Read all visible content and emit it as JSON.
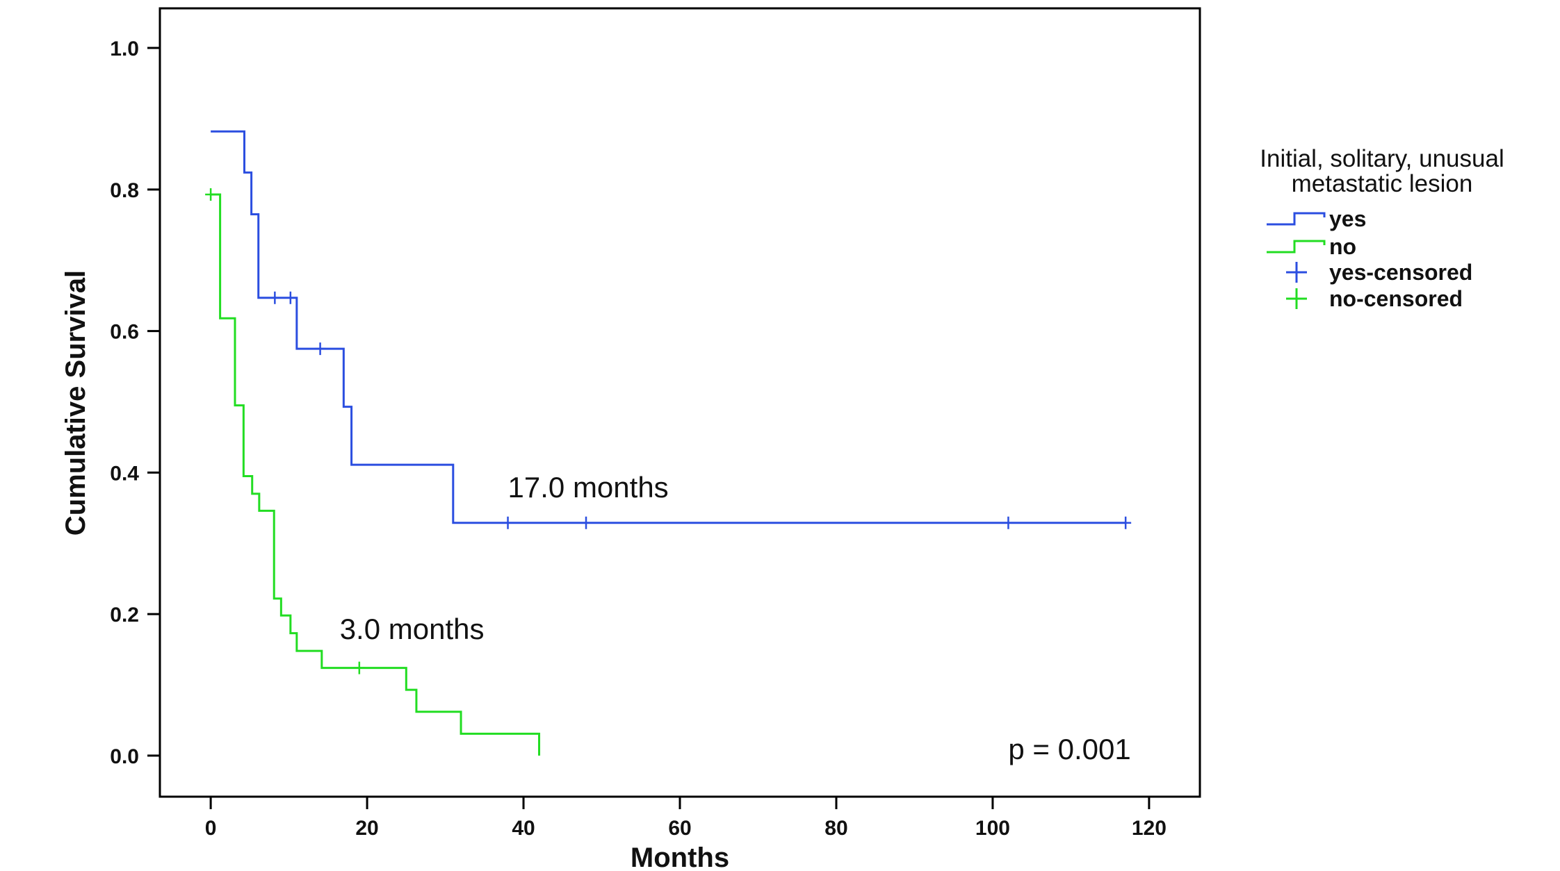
{
  "chart_data": {
    "type": "line",
    "title": "",
    "xlabel": "Months",
    "ylabel": "Cumulative Survival",
    "xlim": [
      -6.5,
      126.5
    ],
    "ylim": [
      -0.058,
      1.056
    ],
    "xticks": [
      0,
      20,
      40,
      60,
      80,
      100,
      120
    ],
    "xtick_labels": [
      "0",
      "20",
      "40",
      "60",
      "80",
      "100",
      "120"
    ],
    "yticks": [
      0.0,
      0.2,
      0.4,
      0.6,
      0.8,
      1.0
    ],
    "ytick_labels": [
      "0.0",
      "0.2",
      "0.4",
      "0.6",
      "0.8",
      "1.0"
    ],
    "grid": false,
    "legend": {
      "title_lines": [
        "Initial, solitary, unusual",
        "metastatic lesion"
      ],
      "placement": "right",
      "items": [
        {
          "label": "yes",
          "kind": "line",
          "color": "#2b4ee0"
        },
        {
          "label": "no",
          "kind": "line",
          "color": "#22dd22"
        },
        {
          "label": "yes-censored",
          "kind": "cross",
          "color": "#2b4ee0"
        },
        {
          "label": "no-censored",
          "kind": "cross",
          "color": "#22dd22"
        }
      ]
    },
    "series": [
      {
        "name": "yes",
        "color": "#2b4ee0",
        "steps": [
          [
            0.0,
            0.882
          ],
          [
            4.3,
            0.824
          ],
          [
            5.2,
            0.765
          ],
          [
            6.1,
            0.647
          ],
          [
            11.0,
            0.575
          ],
          [
            17.0,
            0.493
          ],
          [
            18.0,
            0.411
          ],
          [
            31.0,
            0.329
          ],
          [
            117.0,
            0.329
          ]
        ],
        "censored": [
          [
            8.2,
            0.647
          ],
          [
            10.2,
            0.647
          ],
          [
            14.0,
            0.575
          ],
          [
            38.0,
            0.329
          ],
          [
            48.0,
            0.329
          ],
          [
            102.0,
            0.329
          ],
          [
            117.0,
            0.329
          ]
        ]
      },
      {
        "name": "no",
        "color": "#22dd22",
        "steps": [
          [
            0.0,
            0.793
          ],
          [
            1.2,
            0.618
          ],
          [
            3.1,
            0.495
          ],
          [
            4.2,
            0.395
          ],
          [
            5.3,
            0.37
          ],
          [
            6.2,
            0.346
          ],
          [
            8.1,
            0.222
          ],
          [
            9.0,
            0.198
          ],
          [
            10.2,
            0.173
          ],
          [
            11.0,
            0.148
          ],
          [
            14.2,
            0.124
          ],
          [
            25.0,
            0.093
          ],
          [
            26.3,
            0.062
          ],
          [
            32.0,
            0.031
          ],
          [
            42.0,
            0.0
          ]
        ],
        "censored": [
          [
            0.0,
            0.793
          ],
          [
            19.0,
            0.124
          ]
        ]
      }
    ],
    "annotations": [
      {
        "text": "17.0 months",
        "x": 38.0,
        "y": 0.365,
        "anchor": "start"
      },
      {
        "text": "3.0 months",
        "x": 16.5,
        "y": 0.165,
        "anchor": "start"
      },
      {
        "text": "p = 0.001",
        "x": 102.0,
        "y": -0.005,
        "anchor": "start"
      }
    ]
  }
}
